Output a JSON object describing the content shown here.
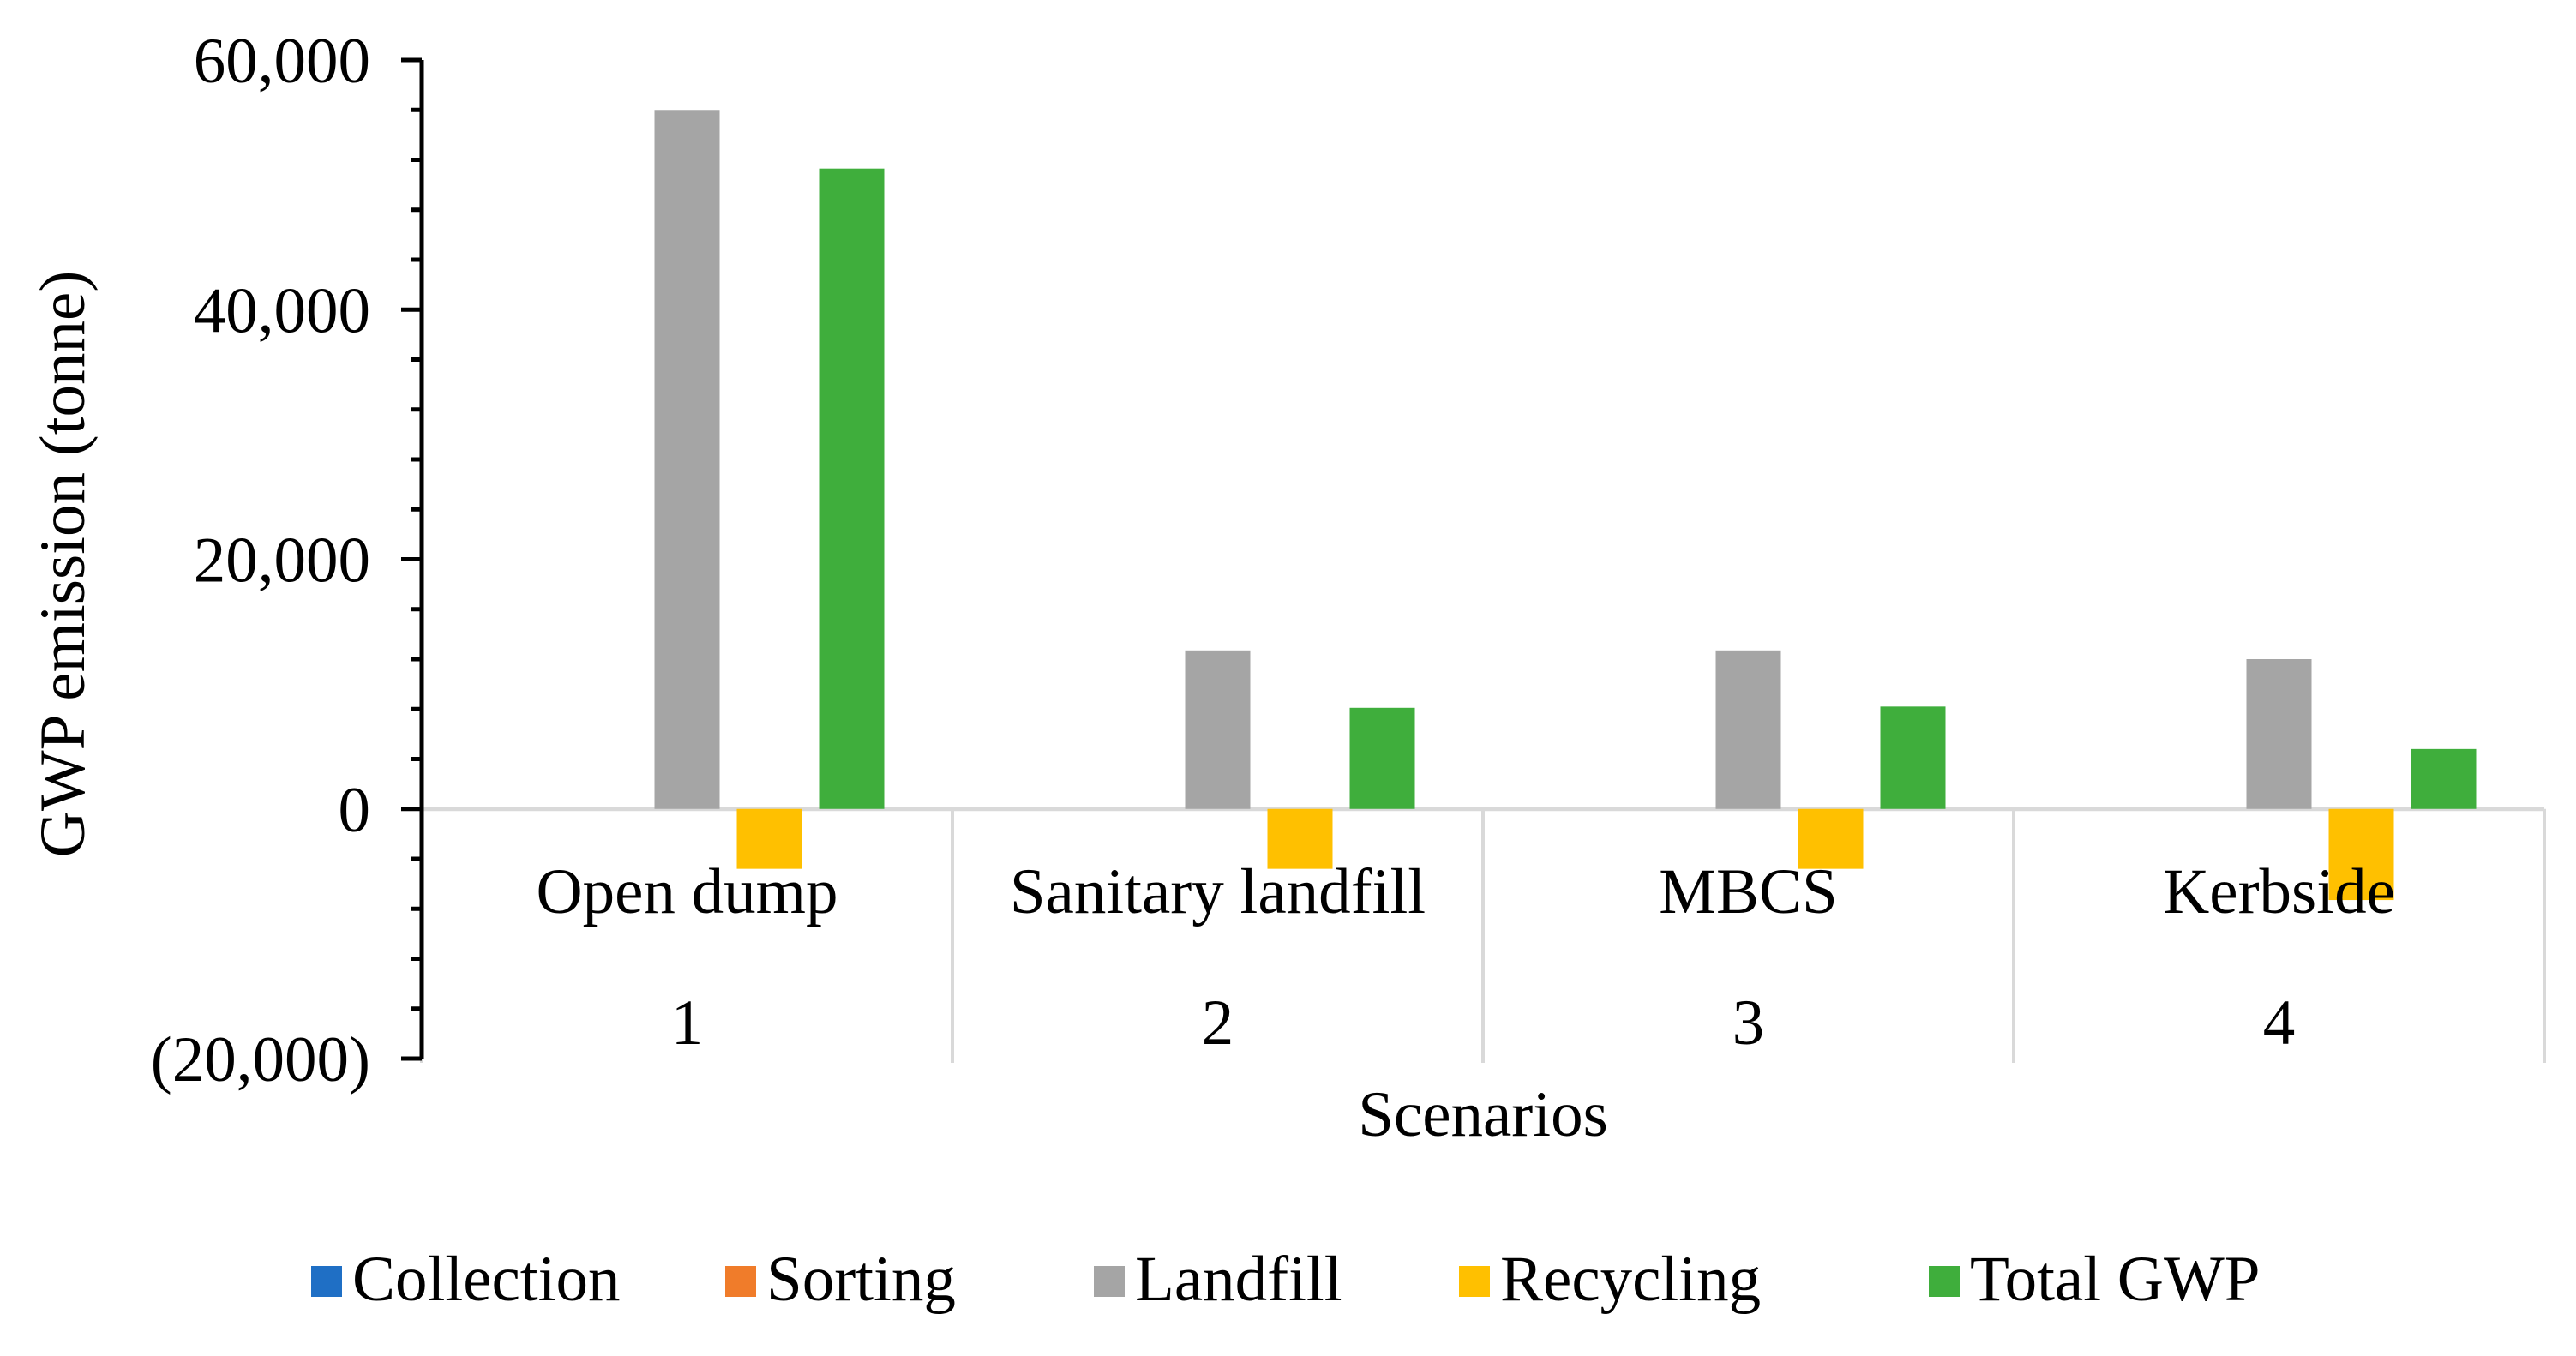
{
  "chart_data": {
    "type": "bar",
    "title": "",
    "xlabel": "Scenarios",
    "ylabel": "GWP emission (tonne)",
    "ylim": [
      -20000,
      60000
    ],
    "yticks": [
      -20000,
      0,
      20000,
      40000,
      60000
    ],
    "ytick_labels": [
      "(20,000)",
      "0",
      "20,000",
      "40,000",
      "60,000"
    ],
    "categories": [
      "1",
      "2",
      "3",
      "4"
    ],
    "category_labels": [
      "Open dump",
      "Sanitary landfill",
      "MBCS",
      "Kerbside"
    ],
    "series": [
      {
        "name": "Collection",
        "color": "#1f6fc5",
        "values": [
          0,
          0,
          0,
          0
        ]
      },
      {
        "name": "Sorting",
        "color": "#f07c2a",
        "values": [
          0,
          0,
          0,
          0
        ]
      },
      {
        "name": "Landfill",
        "color": "#a5a5a5",
        "values": [
          56000,
          12700,
          12700,
          12000
        ]
      },
      {
        "name": "Recycling",
        "color": "#ffc000",
        "values": [
          -4800,
          -4800,
          -4800,
          -7300
        ]
      },
      {
        "name": "Total GWP",
        "color": "#3fae3c",
        "values": [
          51300,
          8100,
          8200,
          4800
        ]
      }
    ],
    "legend_position": "bottom",
    "grid": false
  }
}
